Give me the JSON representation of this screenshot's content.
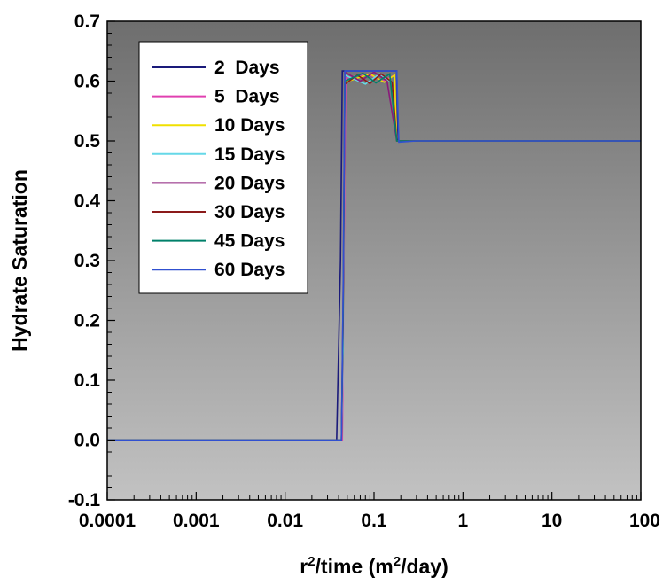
{
  "chart_data": {
    "type": "line",
    "title": "",
    "xlabel": "r²/time (m²/day)",
    "xlabel_parts": {
      "base": "r",
      "sup1": "2",
      "mid": "/time (m",
      "sup2": "2",
      "end": "/day)"
    },
    "ylabel": "Hydrate Saturation",
    "x_scale": "log",
    "xlim": [
      0.0001,
      100
    ],
    "ylim": [
      -0.1,
      0.7
    ],
    "x_ticks": [
      0.0001,
      0.001,
      0.01,
      0.1,
      1,
      10,
      100
    ],
    "x_tick_labels": [
      "0.0001",
      "0.001",
      "0.01",
      "0.1",
      "1",
      "10",
      "100"
    ],
    "y_ticks": [
      -0.1,
      0.0,
      0.1,
      0.2,
      0.3,
      0.4,
      0.5,
      0.6,
      0.7
    ],
    "y_tick_labels": [
      "-0.1",
      "0.0",
      "0.1",
      "0.2",
      "0.3",
      "0.4",
      "0.5",
      "0.6",
      "0.7"
    ],
    "grid": false,
    "legend_position": "top-left",
    "plot_background": {
      "top": "#6e6e6e",
      "bottom": "#c2c2c2"
    },
    "series": [
      {
        "name": "2  Days",
        "color": "#1a1a7a",
        "x": [
          0.0001,
          0.038,
          0.042,
          0.044,
          0.18,
          0.185,
          100
        ],
        "y": [
          0.0,
          0.0,
          0.3,
          0.617,
          0.617,
          0.5,
          0.5
        ]
      },
      {
        "name": "5  Days",
        "color": "#e040b0",
        "x": [
          0.0001,
          0.044,
          0.046,
          0.048,
          0.085,
          0.125,
          0.17,
          0.18,
          100
        ],
        "y": [
          0.0,
          0.0,
          0.3,
          0.605,
          0.612,
          0.6,
          0.61,
          0.5,
          0.5
        ]
      },
      {
        "name": "10 Days",
        "color": "#f0e000",
        "x": [
          0.0001,
          0.043,
          0.045,
          0.047,
          0.09,
          0.13,
          0.17,
          0.18,
          100
        ],
        "y": [
          0.0,
          0.0,
          0.2,
          0.598,
          0.612,
          0.598,
          0.61,
          0.5,
          0.5
        ]
      },
      {
        "name": "15 Days",
        "color": "#66d8e8",
        "x": [
          0.0001,
          0.043,
          0.045,
          0.047,
          0.08,
          0.115,
          0.16,
          0.18,
          100
        ],
        "y": [
          0.0,
          0.0,
          0.15,
          0.61,
          0.595,
          0.612,
          0.597,
          0.5,
          0.5
        ]
      },
      {
        "name": "20 Days",
        "color": "#8a1a7a",
        "x": [
          0.0001,
          0.043,
          0.045,
          0.047,
          0.07,
          0.1,
          0.14,
          0.18,
          100
        ],
        "y": [
          0.0,
          0.0,
          0.25,
          0.615,
          0.6,
          0.615,
          0.6,
          0.5,
          0.5
        ]
      },
      {
        "name": "30 Days",
        "color": "#8b1a1a",
        "x": [
          0.0001,
          0.043,
          0.045,
          0.047,
          0.065,
          0.09,
          0.12,
          0.16,
          0.18,
          100
        ],
        "y": [
          0.0,
          0.0,
          0.2,
          0.595,
          0.61,
          0.596,
          0.612,
          0.598,
          0.5,
          0.5
        ]
      },
      {
        "name": "45 Days",
        "color": "#00806a",
        "x": [
          0.0001,
          0.043,
          0.045,
          0.047,
          0.075,
          0.105,
          0.15,
          0.18,
          100
        ],
        "y": [
          0.0,
          0.0,
          0.22,
          0.6,
          0.613,
          0.597,
          0.612,
          0.5,
          0.5
        ]
      },
      {
        "name": "60 Days",
        "color": "#3050d0",
        "x": [
          0.0001,
          0.043,
          0.045,
          0.047,
          0.18,
          0.19,
          0.3,
          100
        ],
        "y": [
          0.0,
          0.0,
          0.25,
          0.617,
          0.617,
          0.498,
          0.5,
          0.5
        ]
      }
    ]
  }
}
